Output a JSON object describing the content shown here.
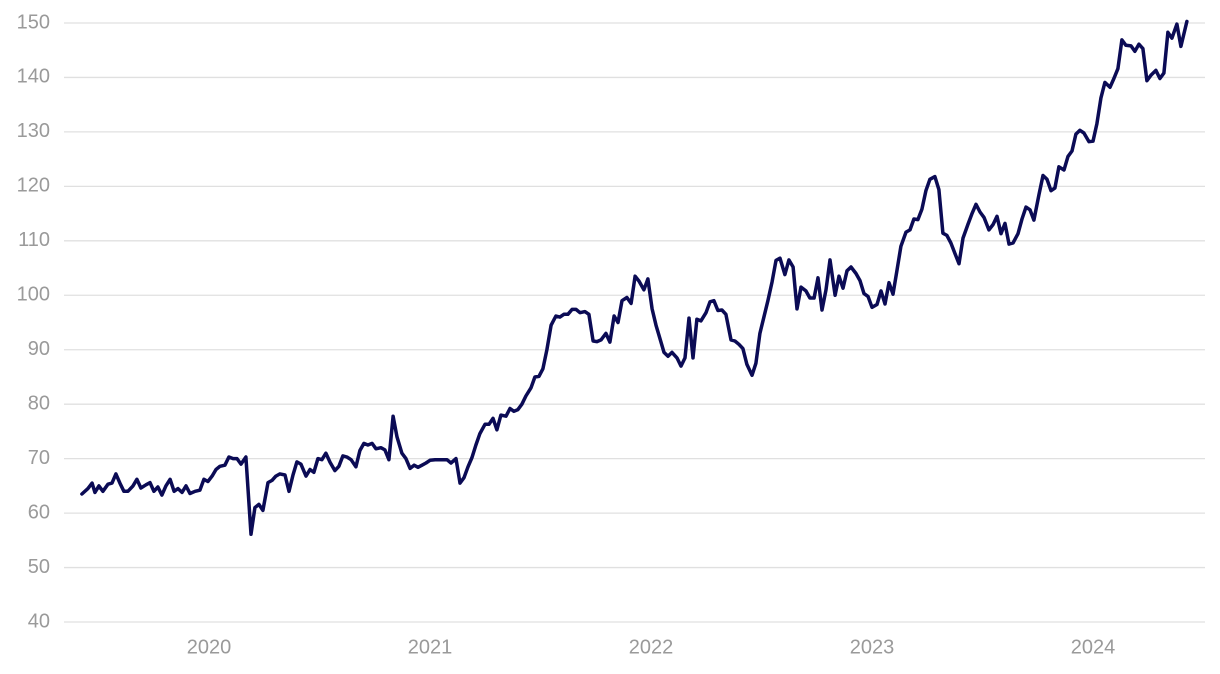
{
  "chart_data": {
    "type": "line",
    "color": "#0b0b55",
    "grid": true,
    "xlim": [
      2019.344,
      2024.507
    ],
    "xticks": [
      2020,
      2021,
      2022,
      2023,
      2024
    ],
    "ylim": [
      40,
      150
    ],
    "yticks": [
      40,
      50,
      60,
      70,
      80,
      90,
      100,
      110,
      120,
      130,
      140,
      150
    ],
    "x": [
      2019.425,
      2019.452,
      2019.471,
      2019.484,
      2019.502,
      2019.52,
      2019.543,
      2019.561,
      2019.579,
      2019.597,
      2019.615,
      2019.633,
      2019.656,
      2019.674,
      2019.692,
      2019.715,
      2019.733,
      2019.751,
      2019.769,
      2019.787,
      2019.805,
      2019.824,
      2019.842,
      2019.86,
      2019.878,
      2019.896,
      2019.914,
      2019.937,
      2019.959,
      2019.977,
      2019.995,
      2020.014,
      2020.032,
      2020.05,
      2020.072,
      2020.09,
      2020.109,
      2020.127,
      2020.145,
      2020.167,
      2020.19,
      2020.208,
      2020.226,
      2020.244,
      2020.267,
      2020.285,
      2020.303,
      2020.321,
      2020.344,
      2020.362,
      2020.38,
      2020.398,
      2020.416,
      2020.439,
      2020.457,
      2020.475,
      2020.493,
      2020.511,
      2020.529,
      2020.548,
      2020.57,
      2020.588,
      2020.606,
      2020.624,
      2020.643,
      2020.665,
      2020.683,
      2020.701,
      2020.719,
      2020.738,
      2020.756,
      2020.778,
      2020.796,
      2020.814,
      2020.833,
      2020.851,
      2020.873,
      2020.891,
      2020.91,
      2020.928,
      2020.946,
      2020.964,
      2020.982,
      2021.0,
      2021.023,
      2021.041,
      2021.059,
      2021.077,
      2021.095,
      2021.118,
      2021.136,
      2021.154,
      2021.172,
      2021.19,
      2021.208,
      2021.226,
      2021.249,
      2021.267,
      2021.285,
      2021.303,
      2021.321,
      2021.344,
      2021.362,
      2021.38,
      2021.398,
      2021.416,
      2021.434,
      2021.457,
      2021.475,
      2021.493,
      2021.511,
      2021.529,
      2021.548,
      2021.57,
      2021.588,
      2021.606,
      2021.624,
      2021.643,
      2021.661,
      2021.679,
      2021.701,
      2021.719,
      2021.738,
      2021.756,
      2021.774,
      2021.796,
      2021.814,
      2021.833,
      2021.851,
      2021.869,
      2021.891,
      2021.91,
      2021.928,
      2021.946,
      2021.968,
      2021.986,
      2022.005,
      2022.023,
      2022.041,
      2022.059,
      2022.077,
      2022.095,
      2022.118,
      2022.136,
      2022.154,
      2022.172,
      2022.19,
      2022.208,
      2022.226,
      2022.249,
      2022.267,
      2022.285,
      2022.303,
      2022.321,
      2022.339,
      2022.362,
      2022.38,
      2022.398,
      2022.416,
      2022.434,
      2022.457,
      2022.475,
      2022.493,
      2022.511,
      2022.529,
      2022.548,
      2022.566,
      2022.584,
      2022.606,
      2022.624,
      2022.643,
      2022.661,
      2022.679,
      2022.701,
      2022.719,
      2022.738,
      2022.756,
      2022.774,
      2022.792,
      2022.81,
      2022.833,
      2022.851,
      2022.869,
      2022.887,
      2022.905,
      2022.928,
      2022.946,
      2022.964,
      2022.982,
      2023.0,
      2023.023,
      2023.041,
      2023.059,
      2023.077,
      2023.095,
      2023.113,
      2023.131,
      2023.154,
      2023.172,
      2023.19,
      2023.208,
      2023.226,
      2023.244,
      2023.262,
      2023.285,
      2023.303,
      2023.321,
      2023.339,
      2023.357,
      2023.376,
      2023.394,
      2023.412,
      2023.434,
      2023.452,
      2023.471,
      2023.489,
      2023.507,
      2023.529,
      2023.548,
      2023.566,
      2023.584,
      2023.602,
      2023.62,
      2023.638,
      2023.661,
      2023.679,
      2023.697,
      2023.715,
      2023.733,
      2023.756,
      2023.774,
      2023.792,
      2023.81,
      2023.828,
      2023.846,
      2023.869,
      2023.887,
      2023.905,
      2023.923,
      2023.941,
      2023.959,
      2023.982,
      2024.0,
      2024.018,
      2024.036,
      2024.054,
      2024.077,
      2024.095,
      2024.113,
      2024.131,
      2024.149,
      2024.172,
      2024.19,
      2024.208,
      2024.226,
      2024.244,
      2024.262,
      2024.285,
      2024.303,
      2024.321,
      2024.339,
      2024.357,
      2024.38,
      2024.398,
      2024.425
    ],
    "values": [
      63.5,
      64.5,
      65.5,
      63.8,
      65,
      64,
      65.3,
      65.5,
      67.2,
      65.5,
      64,
      64,
      65,
      66.2,
      64.6,
      65.2,
      65.6,
      64,
      64.8,
      63.3,
      65,
      66.2,
      64,
      64.5,
      63.8,
      65,
      63.6,
      64,
      64.2,
      66.2,
      65.8,
      66.8,
      68,
      68.6,
      68.8,
      70.3,
      70,
      70,
      69,
      70.3,
      56.1,
      61,
      61.6,
      60.5,
      65.6,
      66,
      66.8,
      67.2,
      67,
      64,
      67,
      69.4,
      69,
      66.8,
      68,
      67.5,
      70,
      69.8,
      71,
      69.3,
      67.8,
      68.6,
      70.5,
      70.3,
      69.8,
      68.5,
      71.5,
      72.8,
      72.5,
      72.8,
      71.8,
      72,
      71.6,
      69.8,
      77.8,
      74,
      71,
      70,
      68.2,
      68.8,
      68.4,
      68.8,
      69.2,
      69.7,
      69.8,
      69.8,
      69.8,
      69.8,
      69.2,
      70,
      65.5,
      66.5,
      68.5,
      70.2,
      72.5,
      74.6,
      76.3,
      76.3,
      77.4,
      75.3,
      78,
      77.8,
      79.2,
      78.7,
      79,
      80,
      81.5,
      83,
      85,
      85.1,
      86.5,
      90,
      94.5,
      96.2,
      96,
      96.5,
      96.5,
      97.4,
      97.4,
      96.8,
      97,
      96.5,
      91.6,
      91.5,
      91.8,
      93,
      91.4,
      96.2,
      95,
      99,
      99.6,
      98.5,
      103.5,
      102.6,
      101,
      103,
      97.5,
      94.5,
      92,
      89.5,
      88.8,
      89.5,
      88.5,
      87,
      88.5,
      95.8,
      88.5,
      95.6,
      95.3,
      96.8,
      98.8,
      99,
      97.2,
      97.3,
      96.5,
      91.8,
      91.6,
      91,
      90.2,
      87.3,
      85.3,
      87.5,
      93,
      96,
      99,
      102.5,
      106.4,
      106.8,
      103.8,
      106.5,
      105.2,
      97.5,
      101.5,
      100.8,
      99.5,
      99.5,
      103.2,
      97.3,
      101,
      106.5,
      100,
      103.5,
      101.3,
      104.5,
      105.2,
      104,
      102.7,
      100.3,
      99.8,
      97.8,
      98.3,
      100.8,
      98.4,
      102.3,
      100.2,
      104.5,
      109,
      111.6,
      112,
      114,
      113.9,
      115.8,
      119.2,
      121.3,
      121.8,
      119.4,
      111.4,
      111,
      109.6,
      107.6,
      105.8,
      110.5,
      113,
      114.9,
      116.7,
      115.3,
      114.3,
      112,
      113,
      114.5,
      111.3,
      113.2,
      109.4,
      109.6,
      111.3,
      114,
      116.2,
      115.7,
      113.8,
      118.5,
      122,
      121.3,
      119.2,
      119.7,
      123.6,
      123,
      125.5,
      126.5,
      129.6,
      130.3,
      129.8,
      128.2,
      128.3,
      131.5,
      136.2,
      139.1,
      138.2,
      139.8,
      141.6,
      146.9,
      145.9,
      145.8,
      144.8,
      146.1,
      145.3,
      139.4,
      140.4,
      141.3,
      139.8,
      140.8,
      148.3,
      147.2,
      149.8,
      145.7,
      150.3
    ]
  }
}
